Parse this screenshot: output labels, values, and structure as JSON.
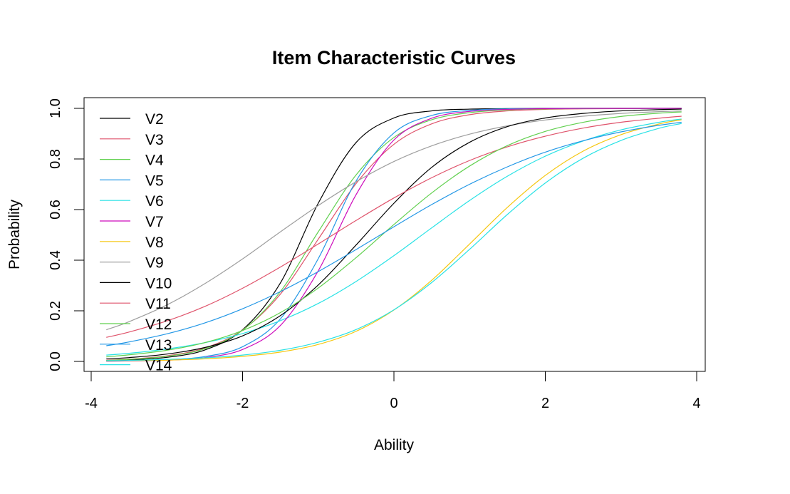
{
  "chart_data": {
    "type": "line",
    "title": "Item Characteristic Curves",
    "xlabel": "Ability",
    "ylabel": "Probability",
    "xlim": [
      -3.8,
      3.8
    ],
    "ylim": [
      0,
      1
    ],
    "x_ticks": [
      "-4",
      "-2",
      "0",
      "2",
      "4"
    ],
    "y_ticks": [
      "0.0",
      "0.2",
      "0.4",
      "0.6",
      "0.8",
      "1.0"
    ],
    "grid": false,
    "legend_position": "top-left",
    "x": [
      -3.8,
      -3.5,
      -3.0,
      -2.5,
      -2.0,
      -1.5,
      -1.0,
      -0.5,
      0.0,
      0.5,
      1.0,
      1.5,
      2.0,
      2.5,
      3.0,
      3.5,
      3.8
    ],
    "series": [
      {
        "name": "V2",
        "color": "#000000",
        "values": [
          0.003,
          0.006,
          0.016,
          0.045,
          0.125,
          0.31,
          0.625,
          0.865,
          0.962,
          0.99,
          0.997,
          0.999,
          1.0,
          1.0,
          1.0,
          1.0,
          1.0
        ]
      },
      {
        "name": "V3",
        "color": "#DF536B",
        "values": [
          0.005,
          0.009,
          0.022,
          0.053,
          0.124,
          0.266,
          0.483,
          0.703,
          0.858,
          0.939,
          0.975,
          0.99,
          0.996,
          0.998,
          0.999,
          1.0,
          1.0
        ]
      },
      {
        "name": "V4",
        "color": "#61D04F",
        "values": [
          0.004,
          0.008,
          0.02,
          0.05,
          0.123,
          0.276,
          0.512,
          0.737,
          0.885,
          0.955,
          0.983,
          0.994,
          0.998,
          0.999,
          1.0,
          1.0,
          1.0
        ]
      },
      {
        "name": "V5",
        "color": "#2297E6",
        "values": [
          0.001,
          0.002,
          0.006,
          0.019,
          0.058,
          0.168,
          0.406,
          0.713,
          0.903,
          0.972,
          0.992,
          0.998,
          0.999,
          1.0,
          1.0,
          1.0,
          1.0
        ]
      },
      {
        "name": "V6",
        "color": "#28E2E5",
        "values": [
          0.025,
          0.032,
          0.049,
          0.074,
          0.11,
          0.161,
          0.229,
          0.316,
          0.418,
          0.528,
          0.636,
          0.732,
          0.811,
          0.871,
          0.915,
          0.945,
          0.958
        ]
      },
      {
        "name": "V7",
        "color": "#CD0BBC",
        "values": [
          0.001,
          0.002,
          0.005,
          0.015,
          0.047,
          0.142,
          0.358,
          0.659,
          0.875,
          0.961,
          0.988,
          0.996,
          0.999,
          1.0,
          1.0,
          1.0,
          1.0
        ]
      },
      {
        "name": "V8",
        "color": "#F5C710",
        "values": [
          0.002,
          0.003,
          0.005,
          0.01,
          0.02,
          0.037,
          0.067,
          0.119,
          0.203,
          0.321,
          0.464,
          0.609,
          0.735,
          0.831,
          0.896,
          0.938,
          0.955
        ]
      },
      {
        "name": "V9",
        "color": "#9E9E9E",
        "values": [
          0.125,
          0.157,
          0.223,
          0.307,
          0.405,
          0.512,
          0.616,
          0.71,
          0.79,
          0.852,
          0.898,
          0.931,
          0.954,
          0.969,
          0.98,
          0.987,
          0.99
        ]
      },
      {
        "name": "V10",
        "color": "#000000",
        "values": [
          0.01,
          0.015,
          0.029,
          0.055,
          0.101,
          0.181,
          0.302,
          0.46,
          0.625,
          0.767,
          0.866,
          0.928,
          0.962,
          0.98,
          0.99,
          0.995,
          0.997
        ]
      },
      {
        "name": "V11",
        "color": "#DF536B",
        "values": [
          0.095,
          0.116,
          0.16,
          0.217,
          0.289,
          0.373,
          0.464,
          0.557,
          0.646,
          0.726,
          0.794,
          0.848,
          0.89,
          0.922,
          0.945,
          0.961,
          0.969
        ]
      },
      {
        "name": "V12",
        "color": "#61D04F",
        "values": [
          0.018,
          0.026,
          0.044,
          0.074,
          0.122,
          0.193,
          0.29,
          0.41,
          0.541,
          0.666,
          0.772,
          0.853,
          0.909,
          0.945,
          0.968,
          0.981,
          0.986
        ]
      },
      {
        "name": "V13",
        "color": "#2297E6",
        "values": [
          0.062,
          0.077,
          0.109,
          0.152,
          0.208,
          0.276,
          0.355,
          0.442,
          0.532,
          0.62,
          0.7,
          0.769,
          0.827,
          0.872,
          0.907,
          0.933,
          0.945
        ]
      },
      {
        "name": "V14",
        "color": "#28E2E5",
        "values": [
          0.003,
          0.004,
          0.008,
          0.014,
          0.025,
          0.044,
          0.076,
          0.126,
          0.204,
          0.312,
          0.443,
          0.581,
          0.705,
          0.803,
          0.873,
          0.921,
          0.94
        ]
      }
    ]
  }
}
